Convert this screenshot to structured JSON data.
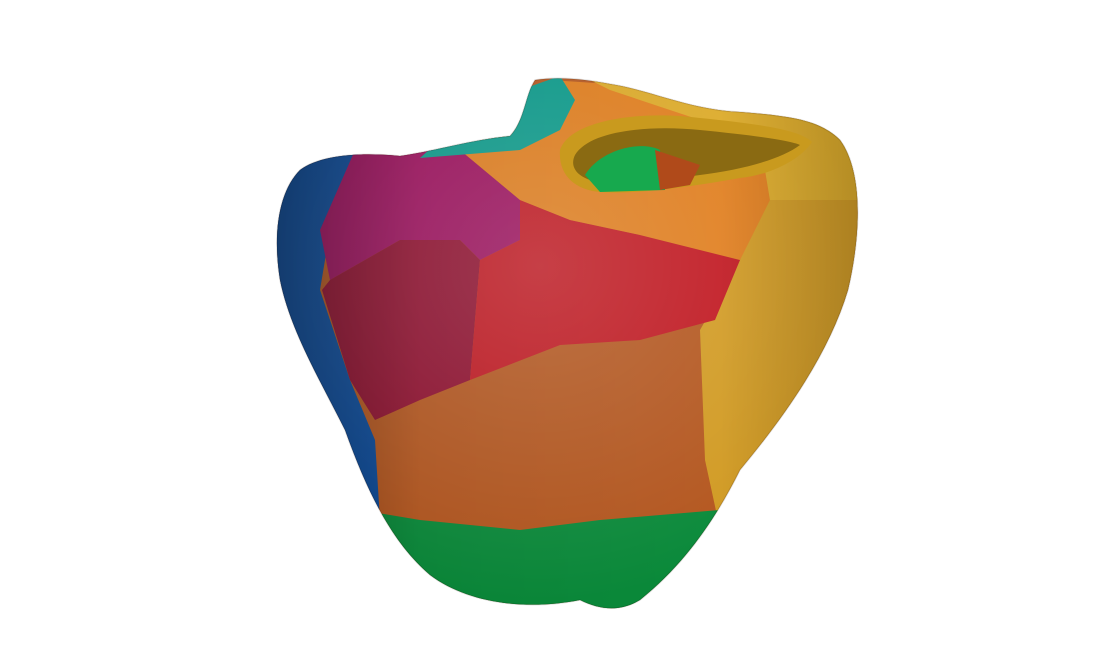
{
  "scene": {
    "background": "#ffffff",
    "subject": "segmented-3d-heart-mesh",
    "segments": [
      {
        "name": "septal-blue",
        "color": "#0a4a9a"
      },
      {
        "name": "anterior-magenta",
        "color": "#9c0f5c"
      },
      {
        "name": "lateral-crimson",
        "color": "#8f0f2e"
      },
      {
        "name": "central-red",
        "color": "#c0161f"
      },
      {
        "name": "mid-orange",
        "color": "#b4561e"
      },
      {
        "name": "lateral-gold",
        "color": "#d19a22"
      },
      {
        "name": "valve-orange",
        "color": "#e07d1c"
      },
      {
        "name": "apex-green",
        "color": "#0a8a3a"
      },
      {
        "name": "outflow-teal",
        "color": "#0a9a8a"
      },
      {
        "name": "inner-green",
        "color": "#17a94e"
      }
    ]
  }
}
